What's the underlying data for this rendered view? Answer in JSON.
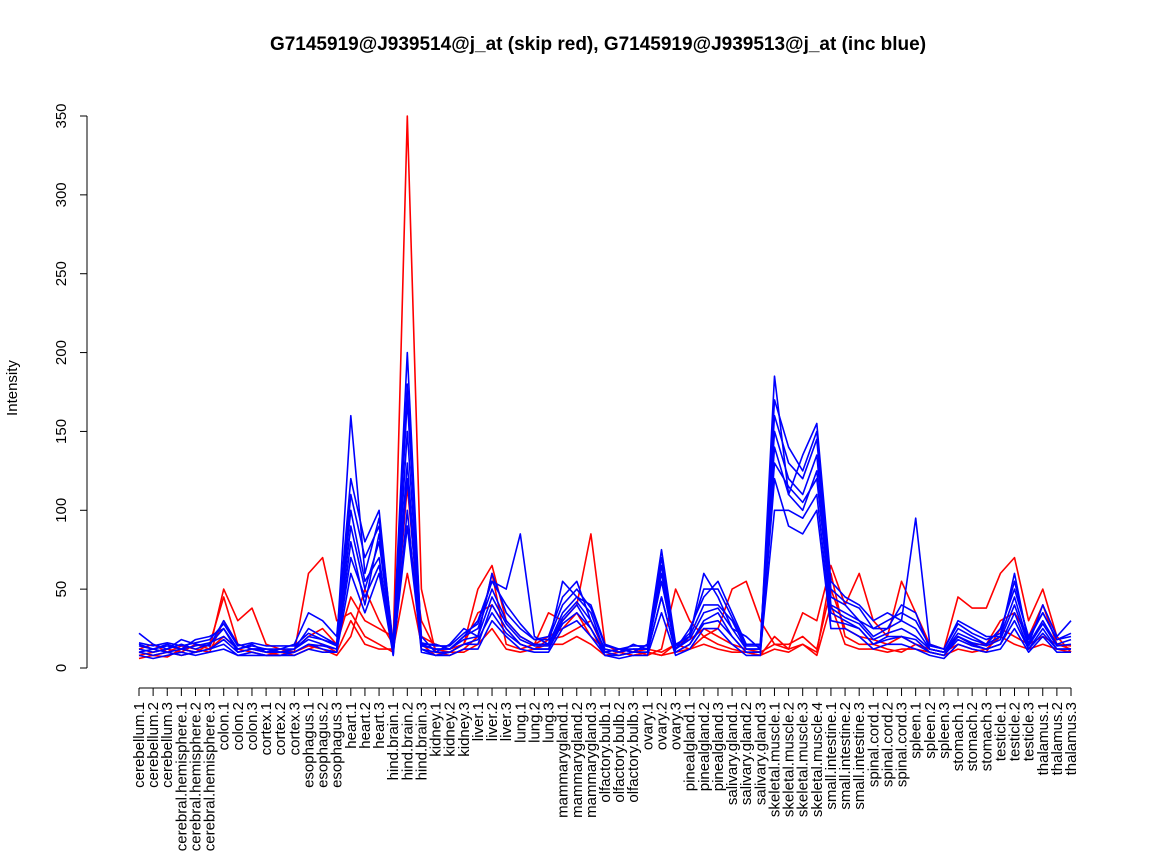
{
  "chart_data": {
    "type": "line",
    "title": "G7145919@J939514@j_at (skip red), G7145919@J939513@j_at (inc blue)",
    "xlabel": "",
    "ylabel": "Intensity",
    "ylim": [
      0,
      350
    ],
    "yticks": [
      0,
      50,
      100,
      150,
      200,
      250,
      300,
      350
    ],
    "grid": false,
    "legend": "none",
    "colors": {
      "skip": "#ff0000",
      "inc": "#0000ff"
    },
    "categories": [
      "cerebellum.1",
      "cerebellum.2",
      "cerebellum.3",
      "cerebral.hemisphere.1",
      "cerebral.hemisphere.2",
      "cerebral.hemisphere.3",
      "colon.1",
      "colon.2",
      "colon.3",
      "cortex.1",
      "cortex.2",
      "cortex.3",
      "esophagus.1",
      "esophagus.2",
      "esophagus.3",
      "heart.1",
      "heart.2",
      "heart.3",
      "hind.brain.1",
      "hind.brain.2",
      "hind.brain.3",
      "kidney.1",
      "kidney.2",
      "kidney.3",
      "liver.1",
      "liver.2",
      "liver.3",
      "lung.1",
      "lung.2",
      "lung.3",
      "mammarygland.1",
      "mammarygland.2",
      "mammarygland.3",
      "olfactory.bulb.1",
      "olfactory.bulb.2",
      "olfactory.bulb.3",
      "ovary.1",
      "ovary.2",
      "ovary.3",
      "pinealgland.1",
      "pinealgland.2",
      "pinealgland.3",
      "salivary.gland.1",
      "salivary.gland.2",
      "salivary.gland.3",
      "skeletal.muscle.1",
      "skeletal.muscle.2",
      "skeletal.muscle.3",
      "skeletal.muscle.4",
      "small.intestine.1",
      "small.intestine.2",
      "small.intestine.3",
      "spinal.cord.1",
      "spinal.cord.2",
      "spinal.cord.3",
      "spleen.1",
      "spleen.2",
      "spleen.3",
      "stomach.1",
      "stomach.2",
      "stomach.3",
      "testicle.1",
      "testicle.2",
      "testicle.3",
      "thalamus.1",
      "thalamus.2",
      "thalamus.3"
    ],
    "series": [
      {
        "group": "skip",
        "values": [
          10,
          8,
          7,
          12,
          10,
          15,
          45,
          15,
          12,
          10,
          8,
          10,
          14,
          12,
          8,
          20,
          50,
          30,
          15,
          350,
          50,
          10,
          8,
          12,
          20,
          60,
          15,
          12,
          15,
          20,
          25,
          35,
          20,
          12,
          10,
          8,
          10,
          8,
          15,
          12,
          20,
          15,
          12,
          10,
          8,
          20,
          12,
          15,
          10,
          60,
          20,
          15,
          15,
          12,
          10,
          15,
          12,
          10,
          15,
          12,
          10,
          25,
          20,
          15,
          20,
          15,
          12
        ]
      },
      {
        "group": "skip",
        "values": [
          8,
          10,
          12,
          10,
          15,
          12,
          50,
          30,
          38,
          15,
          12,
          10,
          60,
          70,
          30,
          35,
          20,
          15,
          10,
          115,
          20,
          15,
          12,
          15,
          50,
          65,
          30,
          20,
          15,
          35,
          30,
          40,
          85,
          15,
          10,
          12,
          8,
          12,
          50,
          30,
          20,
          25,
          50,
          55,
          30,
          15,
          12,
          35,
          30,
          65,
          40,
          60,
          30,
          20,
          55,
          35,
          15,
          12,
          45,
          38,
          38,
          60,
          70,
          30,
          50,
          20,
          10
        ]
      },
      {
        "group": "skip",
        "values": [
          12,
          15,
          10,
          14,
          12,
          10,
          30,
          15,
          12,
          12,
          10,
          12,
          20,
          25,
          15,
          45,
          30,
          25,
          20,
          90,
          30,
          12,
          10,
          15,
          35,
          40,
          25,
          15,
          12,
          18,
          20,
          25,
          30,
          10,
          12,
          10,
          12,
          10,
          15,
          18,
          25,
          20,
          15,
          12,
          10,
          15,
          15,
          20,
          12,
          50,
          25,
          20,
          18,
          15,
          20,
          15,
          12,
          10,
          20,
          15,
          15,
          30,
          35,
          20,
          40,
          15,
          14
        ]
      },
      {
        "group": "skip",
        "values": [
          6,
          8,
          10,
          8,
          10,
          12,
          20,
          12,
          10,
          8,
          10,
          8,
          12,
          15,
          10,
          30,
          15,
          12,
          12,
          60,
          15,
          8,
          10,
          10,
          15,
          25,
          12,
          10,
          12,
          15,
          15,
          20,
          15,
          8,
          10,
          8,
          10,
          8,
          10,
          12,
          15,
          12,
          10,
          10,
          8,
          12,
          10,
          15,
          8,
          40,
          15,
          12,
          12,
          10,
          12,
          12,
          10,
          8,
          12,
          10,
          12,
          20,
          15,
          12,
          15,
          12,
          10
        ]
      },
      {
        "group": "inc",
        "values": [
          22,
          15,
          12,
          18,
          15,
          14,
          30,
          15,
          12,
          12,
          10,
          12,
          25,
          20,
          15,
          160,
          60,
          95,
          15,
          200,
          15,
          15,
          12,
          20,
          30,
          55,
          50,
          85,
          20,
          15,
          55,
          45,
          40,
          15,
          12,
          10,
          15,
          75,
          15,
          20,
          60,
          45,
          25,
          20,
          12,
          185,
          110,
          135,
          155,
          55,
          45,
          40,
          30,
          35,
          30,
          95,
          15,
          12,
          30,
          25,
          20,
          20,
          60,
          15,
          40,
          20,
          30
        ]
      },
      {
        "group": "inc",
        "values": [
          15,
          12,
          15,
          12,
          18,
          20,
          25,
          12,
          15,
          10,
          12,
          15,
          35,
          30,
          20,
          120,
          80,
          100,
          12,
          170,
          20,
          10,
          15,
          25,
          20,
          60,
          35,
          25,
          18,
          20,
          45,
          55,
          30,
          12,
          10,
          15,
          12,
          60,
          12,
          25,
          45,
          55,
          35,
          15,
          15,
          160,
          130,
          120,
          145,
          45,
          40,
          30,
          25,
          25,
          40,
          35,
          12,
          10,
          25,
          20,
          15,
          25,
          50,
          20,
          35,
          18,
          20
        ]
      },
      {
        "group": "inc",
        "values": [
          10,
          8,
          10,
          8,
          10,
          12,
          15,
          8,
          10,
          8,
          8,
          10,
          15,
          12,
          10,
          80,
          40,
          85,
          8,
          120,
          12,
          8,
          10,
          15,
          15,
          40,
          25,
          15,
          12,
          12,
          30,
          40,
          25,
          8,
          8,
          10,
          10,
          45,
          10,
          15,
          30,
          35,
          20,
          10,
          10,
          140,
          110,
          100,
          125,
          35,
          30,
          25,
          15,
          20,
          20,
          15,
          10,
          8,
          20,
          15,
          12,
          15,
          35,
          12,
          25,
          12,
          12
        ]
      },
      {
        "group": "inc",
        "values": [
          12,
          10,
          12,
          15,
          12,
          15,
          25,
          10,
          12,
          12,
          10,
          12,
          20,
          18,
          15,
          100,
          55,
          70,
          10,
          150,
          15,
          12,
          12,
          20,
          25,
          50,
          30,
          20,
          15,
          15,
          35,
          45,
          35,
          10,
          12,
          12,
          12,
          65,
          12,
          20,
          40,
          40,
          30,
          12,
          12,
          150,
          120,
          110,
          135,
          40,
          35,
          30,
          20,
          25,
          30,
          25,
          12,
          10,
          22,
          18,
          15,
          20,
          45,
          15,
          30,
          15,
          18
        ]
      },
      {
        "group": "inc",
        "values": [
          8,
          6,
          8,
          10,
          8,
          10,
          12,
          8,
          8,
          8,
          8,
          8,
          12,
          10,
          10,
          60,
          35,
          60,
          8,
          100,
          10,
          8,
          8,
          12,
          12,
          30,
          20,
          12,
          10,
          10,
          25,
          30,
          20,
          8,
          6,
          8,
          8,
          35,
          8,
          12,
          25,
          25,
          15,
          8,
          8,
          120,
          90,
          85,
          100,
          25,
          25,
          20,
          12,
          15,
          15,
          12,
          8,
          6,
          15,
          12,
          10,
          12,
          25,
          10,
          20,
          10,
          10
        ]
      },
      {
        "group": "inc",
        "values": [
          14,
          12,
          14,
          12,
          14,
          16,
          20,
          12,
          14,
          12,
          12,
          12,
          18,
          15,
          12,
          90,
          50,
          80,
          12,
          130,
          14,
          12,
          12,
          18,
          20,
          45,
          28,
          18,
          14,
          14,
          32,
          42,
          30,
          12,
          10,
          12,
          12,
          55,
          12,
          18,
          35,
          38,
          25,
          12,
          12,
          130,
          115,
          105,
          120,
          38,
          32,
          28,
          18,
          22,
          25,
          20,
          12,
          10,
          20,
          16,
          14,
          18,
          40,
          14,
          28,
          14,
          15
        ]
      },
      {
        "group": "inc",
        "values": [
          10,
          12,
          10,
          12,
          10,
          12,
          18,
          10,
          12,
          10,
          10,
          10,
          15,
          14,
          12,
          70,
          45,
          65,
          10,
          90,
          12,
          10,
          10,
          15,
          18,
          35,
          22,
          15,
          12,
          12,
          28,
          35,
          25,
          10,
          8,
          10,
          10,
          45,
          10,
          15,
          28,
          30,
          20,
          10,
          10,
          100,
          100,
          95,
          110,
          30,
          28,
          25,
          15,
          18,
          20,
          18,
          10,
          8,
          18,
          14,
          12,
          15,
          30,
          12,
          22,
          12,
          12
        ]
      },
      {
        "group": "inc",
        "values": [
          16,
          14,
          16,
          14,
          16,
          18,
          28,
          14,
          16,
          14,
          14,
          14,
          22,
          18,
          14,
          110,
          70,
          90,
          14,
          180,
          16,
          14,
          14,
          22,
          28,
          55,
          40,
          28,
          18,
          18,
          40,
          50,
          38,
          14,
          12,
          14,
          14,
          70,
          14,
          22,
          50,
          50,
          32,
          14,
          14,
          170,
          140,
          125,
          150,
          50,
          42,
          38,
          25,
          30,
          35,
          30,
          14,
          12,
          28,
          22,
          18,
          22,
          55,
          18,
          35,
          18,
          22
        ]
      }
    ]
  }
}
